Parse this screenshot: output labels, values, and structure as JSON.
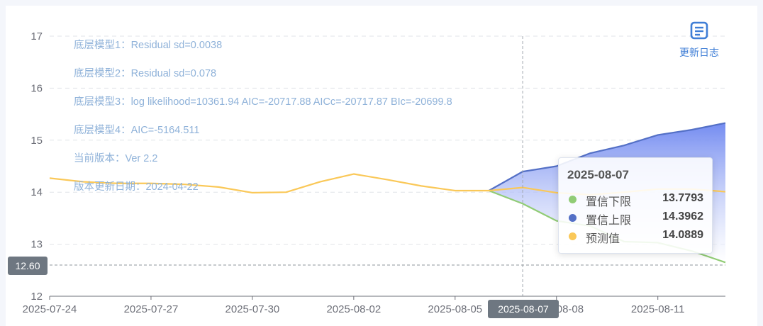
{
  "notes": [
    "底层模型1：Residual sd=0.0038",
    "底层模型2：Residual sd=0.078",
    "底层模型3：log likelihood=10361.94 AIC=-20717.88 AICc=-20717.87 BIc=-20699.8",
    "底层模型4：AIC=-5164.511",
    "当前版本：Ver 2.2",
    "版本更新日期：2024-04-22"
  ],
  "toolbar": {
    "update_log_label": "更新日志",
    "update_log_icon": "document-icon"
  },
  "pointer": {
    "y_value_label": "12.60",
    "x_value_label": "2025-08-07",
    "y_value": 12.6
  },
  "tooltip": {
    "title": "2025-08-07",
    "rows": [
      {
        "name": "置信下限",
        "value": "13.7793",
        "color": "#91cc75"
      },
      {
        "name": "置信上限",
        "value": "14.3962",
        "color": "#5470c6"
      },
      {
        "name": "预测值",
        "value": "14.0889",
        "color": "#fac858"
      }
    ]
  },
  "chart_data": {
    "type": "line",
    "x": [
      "2025-07-24",
      "2025-07-25",
      "2025-07-26",
      "2025-07-27",
      "2025-07-28",
      "2025-07-29",
      "2025-07-30",
      "2025-07-31",
      "2025-08-01",
      "2025-08-02",
      "2025-08-03",
      "2025-08-04",
      "2025-08-05",
      "2025-08-06",
      "2025-08-07",
      "2025-08-08",
      "2025-08-09",
      "2025-08-10",
      "2025-08-11",
      "2025-08-12",
      "2025-08-13"
    ],
    "x_ticks": [
      "2025-07-24",
      "2025-07-27",
      "2025-07-30",
      "2025-08-02",
      "2025-08-05",
      "2025-08-08",
      "2025-08-11"
    ],
    "ylim": [
      12,
      17
    ],
    "y_ticks": [
      12,
      13,
      14,
      15,
      16,
      17
    ],
    "grid": true,
    "series": [
      {
        "name": "预测值",
        "color": "#fac858",
        "values": [
          14.27,
          14.2,
          14.17,
          14.17,
          14.15,
          14.1,
          13.99,
          14.0,
          14.2,
          14.35,
          14.24,
          14.12,
          14.03,
          14.03,
          14.09,
          13.99,
          13.95,
          14.0,
          14.06,
          14.06,
          14.01
        ]
      },
      {
        "name": "置信上限",
        "color": "#5470c6",
        "values": [
          null,
          null,
          null,
          null,
          null,
          null,
          null,
          null,
          null,
          null,
          null,
          null,
          null,
          14.03,
          14.3962,
          14.5,
          14.75,
          14.9,
          15.1,
          15.2,
          15.33
        ]
      },
      {
        "name": "置信下限",
        "color": "#91cc75",
        "values": [
          null,
          null,
          null,
          null,
          null,
          null,
          null,
          null,
          null,
          null,
          null,
          null,
          null,
          14.03,
          13.7793,
          13.45,
          13.35,
          13.05,
          13.03,
          12.87,
          12.65
        ]
      }
    ]
  }
}
